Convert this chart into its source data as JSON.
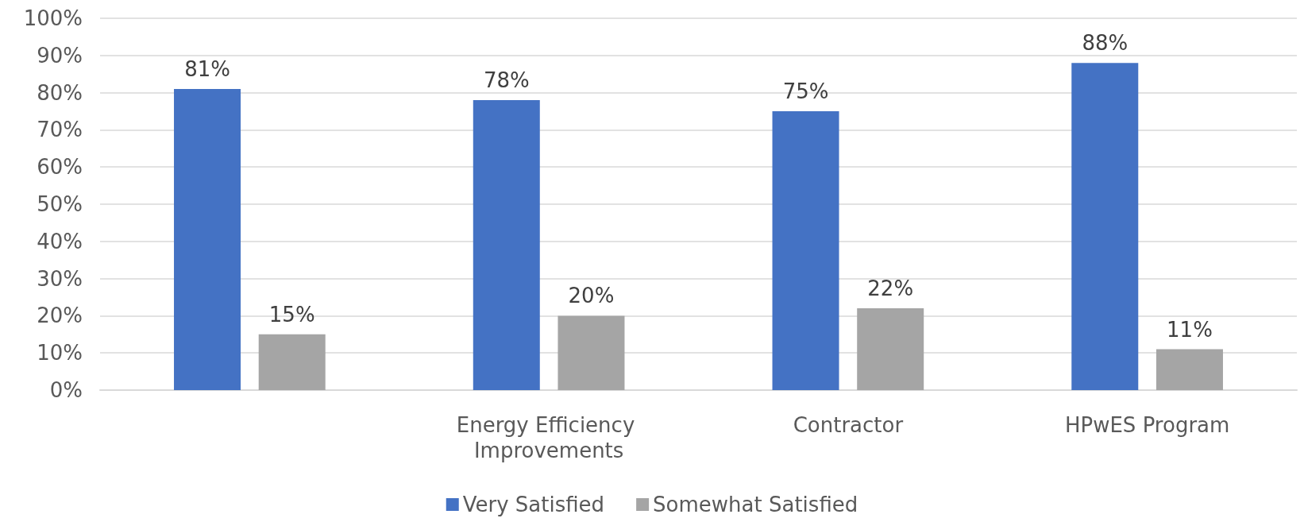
{
  "chart_data": {
    "type": "bar",
    "categories": [
      null,
      "Energy Efficiency Improvements",
      "Contractor",
      "HPwES Program"
    ],
    "series": [
      {
        "name": "Very Satisfied",
        "color": "#4472c4",
        "values": [
          81,
          78,
          75,
          88
        ],
        "value_labels": [
          "81%",
          "78%",
          "75%",
          "88%"
        ]
      },
      {
        "name": "Somewhat Satisfied",
        "color": "#a5a5a5",
        "values": [
          15,
          20,
          22,
          11
        ],
        "value_labels": [
          "15%",
          "20%",
          "22%",
          "11%"
        ]
      }
    ],
    "ylim": [
      0,
      100
    ],
    "yticks": [
      {
        "value": 0,
        "label": "0%"
      },
      {
        "value": 10,
        "label": "10%"
      },
      {
        "value": 20,
        "label": "20%"
      },
      {
        "value": 30,
        "label": "30%"
      },
      {
        "value": 40,
        "label": "40%"
      },
      {
        "value": 50,
        "label": "50%"
      },
      {
        "value": 60,
        "label": "60%"
      },
      {
        "value": 70,
        "label": "70%"
      },
      {
        "value": 80,
        "label": "80%"
      },
      {
        "value": 90,
        "label": "90%"
      },
      {
        "value": 100,
        "label": "100%"
      }
    ],
    "grid": "y",
    "legend": "bottom"
  }
}
